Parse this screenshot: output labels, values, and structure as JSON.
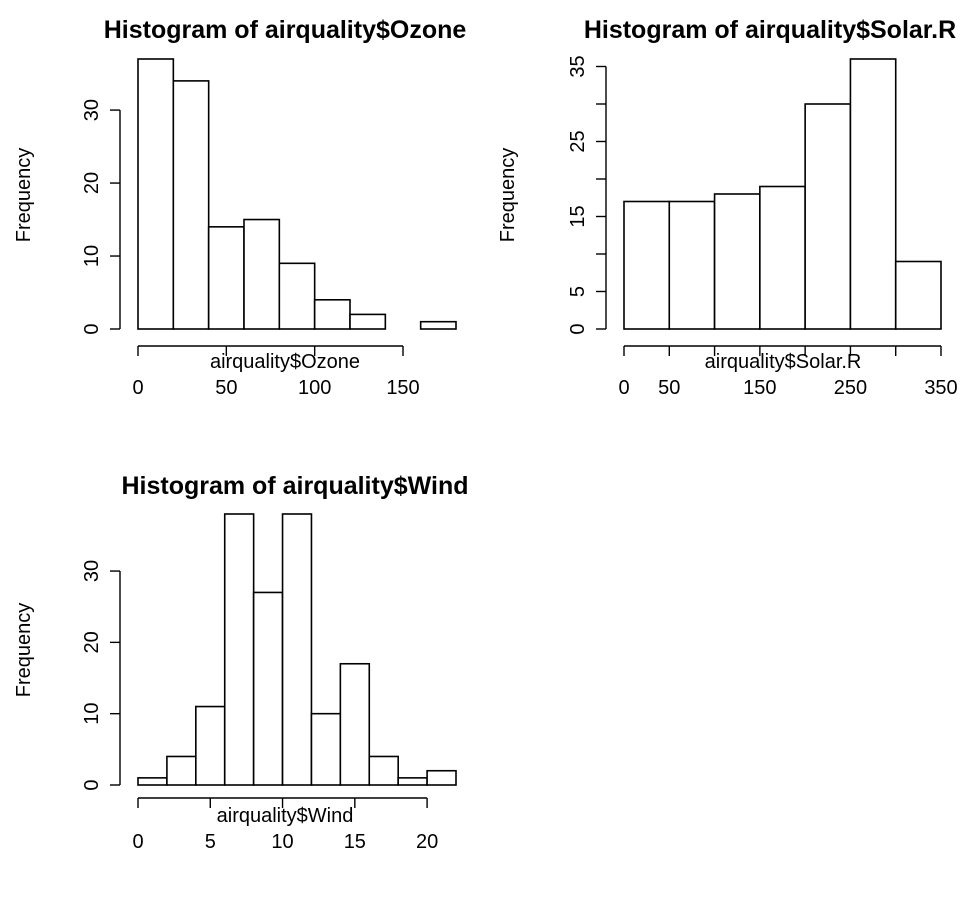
{
  "chart_data": [
    {
      "type": "bar",
      "title": "Histogram of airquality$Ozone",
      "xlabel": "airquality$Ozone",
      "ylabel": "Frequency",
      "bins": [
        [
          0,
          20
        ],
        [
          20,
          40
        ],
        [
          40,
          60
        ],
        [
          60,
          80
        ],
        [
          80,
          100
        ],
        [
          100,
          120
        ],
        [
          120,
          140
        ],
        [
          140,
          160
        ],
        [
          160,
          180
        ]
      ],
      "values": [
        37,
        34,
        14,
        15,
        9,
        4,
        2,
        0,
        1
      ],
      "xticks": [
        0,
        50,
        100,
        150
      ],
      "yticks": [
        0,
        10,
        20,
        30
      ],
      "xlim": [
        0,
        180
      ],
      "ylim": [
        0,
        37
      ]
    },
    {
      "type": "bar",
      "title": "Histogram of airquality$Solar.R",
      "xlabel": "airquality$Solar.R",
      "ylabel": "Frequency",
      "bins": [
        [
          0,
          50
        ],
        [
          50,
          100
        ],
        [
          100,
          150
        ],
        [
          150,
          200
        ],
        [
          200,
          250
        ],
        [
          250,
          300
        ],
        [
          300,
          350
        ]
      ],
      "values": [
        17,
        17,
        18,
        19,
        30,
        36,
        9
      ],
      "xticks": [
        0,
        50,
        150,
        250,
        350
      ],
      "xticks_minor": [
        0,
        50,
        100,
        150,
        200,
        250,
        300,
        350
      ],
      "yticks": [
        0,
        5,
        15,
        25,
        35
      ],
      "yticks_minor": [
        0,
        5,
        10,
        15,
        20,
        25,
        30,
        35
      ],
      "xlim": [
        0,
        350
      ],
      "ylim": [
        0,
        36
      ]
    },
    {
      "type": "bar",
      "title": "Histogram of airquality$Wind",
      "xlabel": "airquality$Wind",
      "ylabel": "Frequency",
      "bins": [
        [
          0,
          2
        ],
        [
          2,
          4
        ],
        [
          4,
          6
        ],
        [
          6,
          8
        ],
        [
          8,
          10
        ],
        [
          10,
          12
        ],
        [
          12,
          14
        ],
        [
          14,
          16
        ],
        [
          16,
          18
        ],
        [
          18,
          20
        ],
        [
          20,
          22
        ]
      ],
      "values": [
        1,
        4,
        11,
        38,
        27,
        38,
        10,
        17,
        4,
        1,
        2
      ],
      "xticks": [
        0,
        5,
        10,
        15,
        20
      ],
      "yticks": [
        0,
        10,
        20,
        30
      ],
      "xlim": [
        0,
        22
      ],
      "ylim": [
        0,
        38
      ]
    }
  ]
}
